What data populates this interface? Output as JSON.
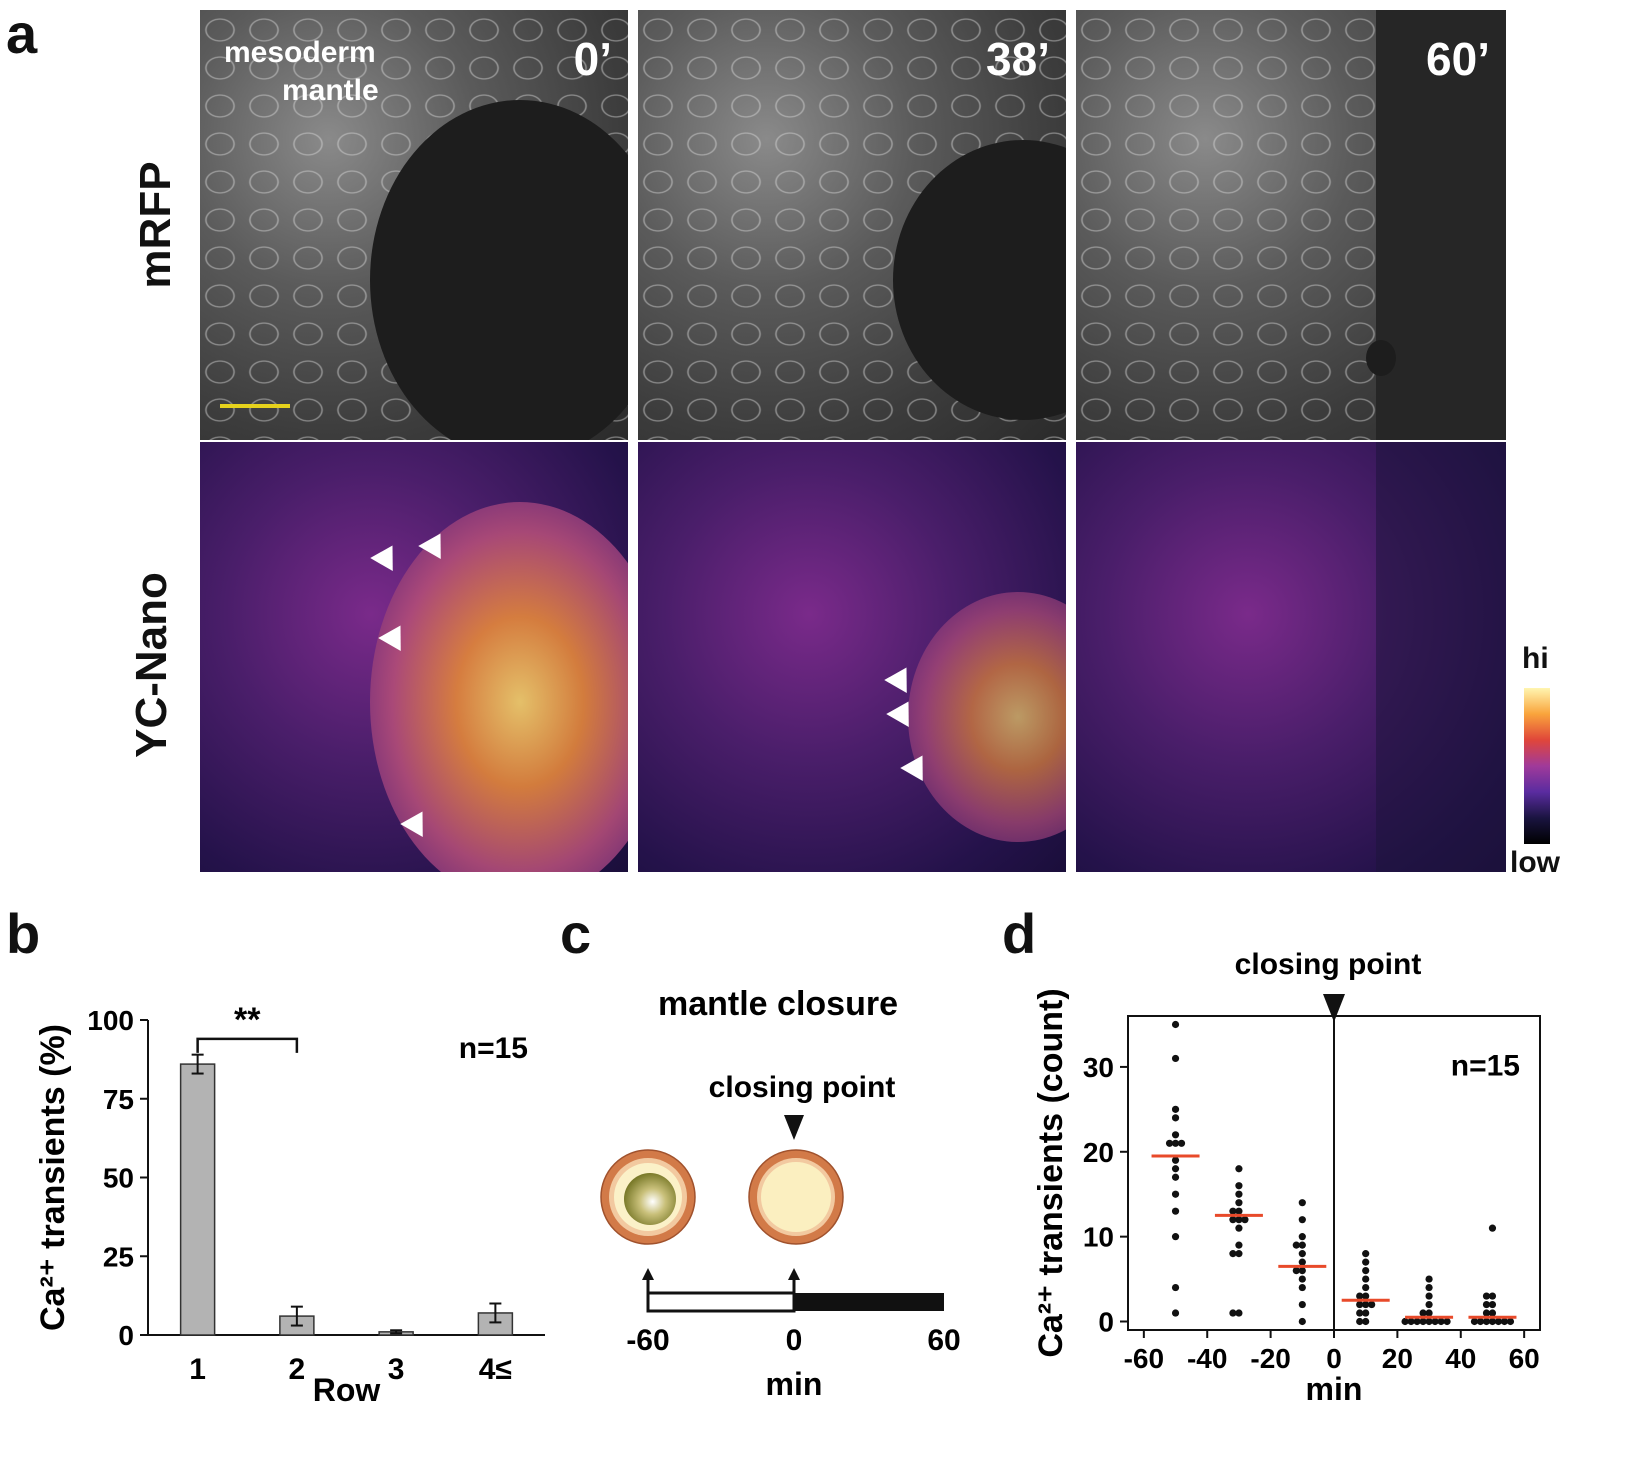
{
  "panel_a": {
    "label": "a",
    "row_labels": [
      "mRFP",
      "YC-Nano"
    ],
    "region_label_1": "mesoderm",
    "region_label_2": "mantle",
    "timepoints": [
      "0’",
      "38’",
      "60’"
    ],
    "colorbar_hi": "hi",
    "colorbar_low": "low",
    "colorbar_colors": [
      "#fff5b0",
      "#f9a43c",
      "#e0463a",
      "#a03a9a",
      "#5a2ca0",
      "#1a1440",
      "#000000"
    ]
  },
  "panel_b": {
    "label": "b",
    "n_label": "n=15",
    "significance": "**",
    "chart_data": {
      "type": "bar",
      "categories": [
        "1",
        "2",
        "3",
        "4≤"
      ],
      "values": [
        86,
        6,
        1,
        7
      ],
      "errors": [
        3,
        3,
        0.5,
        3
      ],
      "xlabel": "Row",
      "ylabel": "Ca²⁺ transients (%)",
      "ylim": [
        0,
        100
      ],
      "yticks": [
        0,
        25,
        50,
        75,
        100
      ],
      "bar_color": "#b3b3b3"
    }
  },
  "panel_c": {
    "label": "c",
    "title": "mantle closure",
    "closing_point": "closing point",
    "axis_ticks": [
      "-60",
      "0",
      "60"
    ],
    "axis_label": "min",
    "colors": {
      "ring": "#d27a48",
      "inner_ring": "#f2c9a0",
      "fill_open": "#7a7a2a",
      "fill_closed": "#fbefc0"
    }
  },
  "panel_d": {
    "label": "d",
    "closing_point": "closing point",
    "n_label": "n=15",
    "chart_data": {
      "type": "scatter",
      "xlabel": "min",
      "ylabel": "Ca²⁺ transients (count)",
      "xlim": [
        -65,
        65
      ],
      "ylim": [
        -1,
        36
      ],
      "xticks": [
        -60,
        -40,
        -20,
        0,
        20,
        40,
        60
      ],
      "yticks": [
        0,
        10,
        20,
        30
      ],
      "groups": [
        {
          "x": -50,
          "values": [
            35,
            31,
            25,
            24,
            22,
            21,
            21,
            21,
            19,
            18,
            17,
            15,
            13,
            10,
            4,
            1
          ],
          "median": 19.5
        },
        {
          "x": -30,
          "values": [
            18,
            16,
            15,
            14,
            13,
            13,
            12,
            12,
            12,
            11,
            9,
            8,
            8,
            1,
            1
          ],
          "median": 12.5
        },
        {
          "x": -10,
          "values": [
            14,
            12,
            10,
            9,
            9,
            8,
            7,
            6,
            6,
            5,
            4,
            2,
            0
          ],
          "median": 6.5
        },
        {
          "x": 10,
          "values": [
            8,
            7,
            6,
            5,
            4,
            3,
            3,
            2,
            2,
            2,
            1,
            1,
            0,
            0
          ],
          "median": 2.5
        },
        {
          "x": 30,
          "values": [
            5,
            4,
            3,
            2,
            1,
            1,
            0,
            0,
            0,
            0,
            0,
            0,
            0,
            0
          ],
          "median": 0.5
        },
        {
          "x": 50,
          "values": [
            11,
            3,
            3,
            2,
            2,
            1,
            1,
            0,
            0,
            0,
            0,
            0,
            0,
            0
          ],
          "median": 0.5
        }
      ],
      "point_color": "#111111",
      "median_color": "#e84a2a",
      "closing_x": 0
    }
  }
}
